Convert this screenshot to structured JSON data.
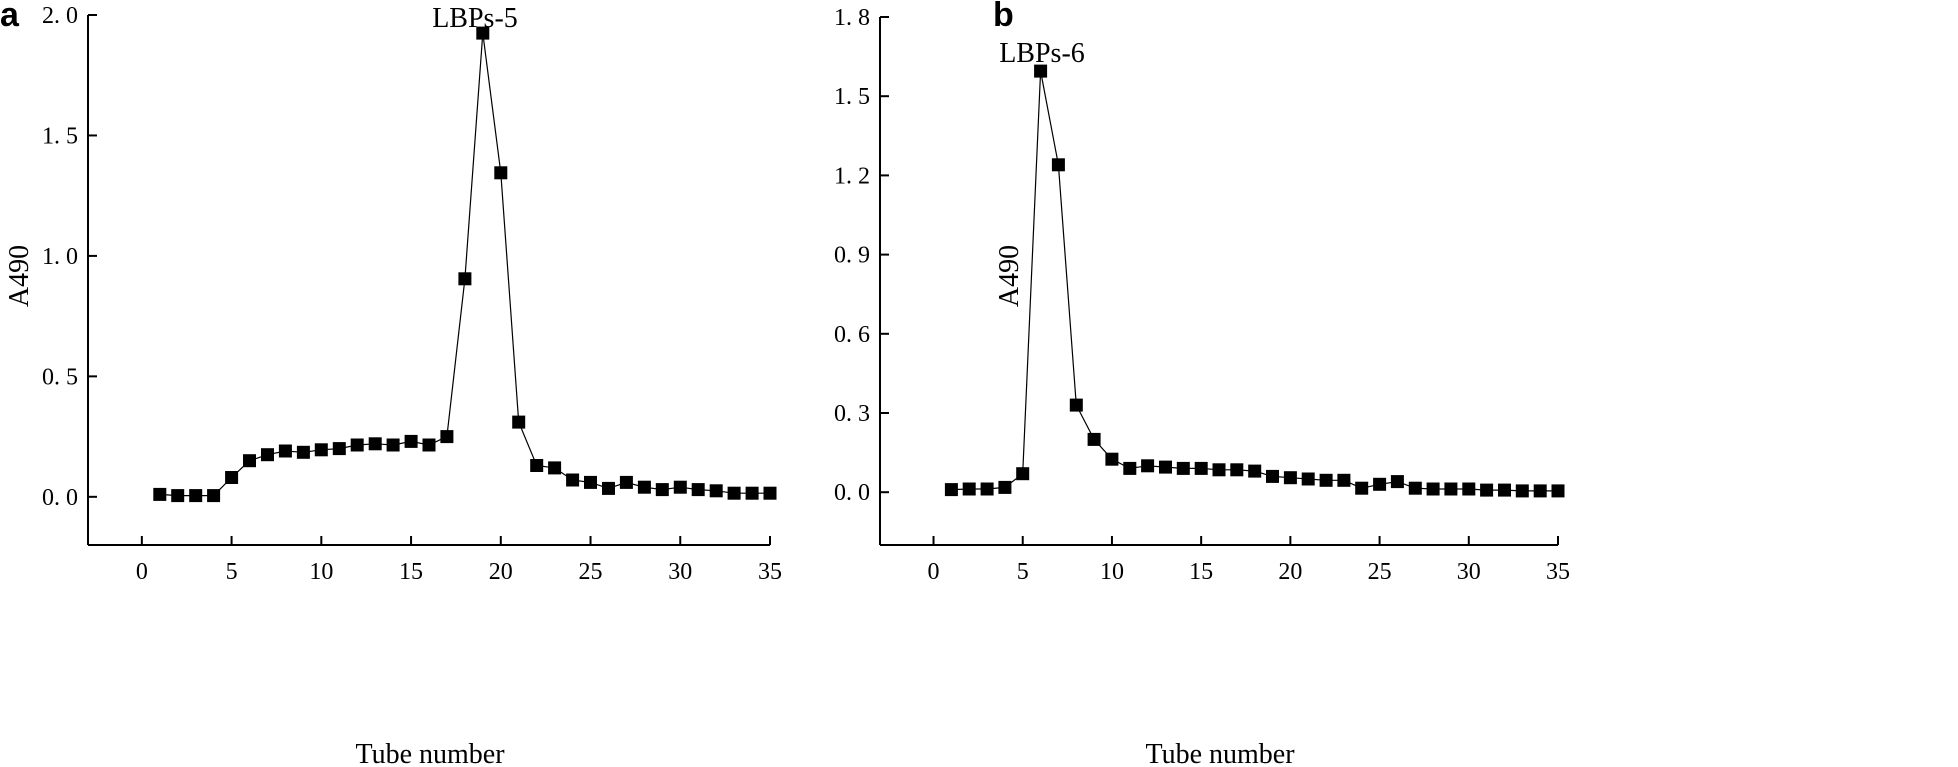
{
  "chart_data": [
    {
      "panel": "a",
      "type": "line",
      "peak_label": "LBPs-5",
      "xlabel": "Tube number",
      "ylabel": "A490",
      "xlim": [
        -3,
        35
      ],
      "ylim": [
        -0.2,
        2.0
      ],
      "xticks": [
        0,
        5,
        10,
        15,
        20,
        25,
        30,
        35
      ],
      "xtick_labels": [
        "0",
        "5",
        "10",
        "15",
        "20",
        "25",
        "30",
        "35"
      ],
      "yticks": [
        0.0,
        0.5,
        1.0,
        1.5,
        2.0
      ],
      "ytick_labels": [
        "0. 0",
        "0. 5",
        "1. 0",
        "1. 5",
        "2. 0"
      ],
      "peak_x": 19,
      "series": [
        {
          "x": [
            1,
            2,
            3,
            4,
            5,
            6,
            7,
            8,
            9,
            10,
            11,
            12,
            13,
            14,
            15,
            16,
            17,
            18,
            19,
            20,
            21,
            22,
            23,
            24,
            25,
            26,
            27,
            28,
            29,
            30,
            31,
            32,
            33,
            34,
            35
          ],
          "values": [
            0.01,
            0.005,
            0.005,
            0.005,
            0.08,
            0.15,
            0.175,
            0.19,
            0.185,
            0.195,
            0.2,
            0.215,
            0.22,
            0.215,
            0.23,
            0.215,
            0.25,
            0.905,
            1.925,
            1.345,
            0.31,
            0.13,
            0.12,
            0.07,
            0.06,
            0.035,
            0.06,
            0.04,
            0.03,
            0.04,
            0.03,
            0.025,
            0.015,
            0.015,
            0.015
          ]
        }
      ]
    },
    {
      "panel": "b",
      "type": "line",
      "peak_label": "LBPs-6",
      "xlabel": "Tube number",
      "ylabel": "A490",
      "xlim": [
        -3,
        35
      ],
      "ylim": [
        -0.2,
        1.8
      ],
      "xticks": [
        0,
        5,
        10,
        15,
        20,
        25,
        30,
        35
      ],
      "xtick_labels": [
        "0",
        "5",
        "10",
        "15",
        "20",
        "25",
        "30",
        "35"
      ],
      "yticks": [
        0.0,
        0.3,
        0.6,
        0.9,
        1.2,
        1.5,
        1.8
      ],
      "ytick_labels": [
        "0. 0",
        "0. 3",
        "0. 6",
        "0. 9",
        "1. 2",
        "1. 5",
        "1. 8"
      ],
      "peak_x": 6,
      "series": [
        {
          "x": [
            1,
            2,
            3,
            4,
            5,
            6,
            7,
            8,
            9,
            10,
            11,
            12,
            13,
            14,
            15,
            16,
            17,
            18,
            19,
            20,
            21,
            22,
            23,
            24,
            25,
            26,
            27,
            28,
            29,
            30,
            31,
            32,
            33,
            34,
            35
          ],
          "values": [
            0.01,
            0.012,
            0.012,
            0.018,
            0.07,
            1.595,
            1.24,
            0.33,
            0.2,
            0.125,
            0.09,
            0.1,
            0.095,
            0.09,
            0.09,
            0.085,
            0.085,
            0.08,
            0.06,
            0.055,
            0.05,
            0.045,
            0.045,
            0.015,
            0.03,
            0.04,
            0.015,
            0.012,
            0.012,
            0.012,
            0.008,
            0.008,
            0.005,
            0.005,
            0.005
          ]
        }
      ]
    }
  ]
}
